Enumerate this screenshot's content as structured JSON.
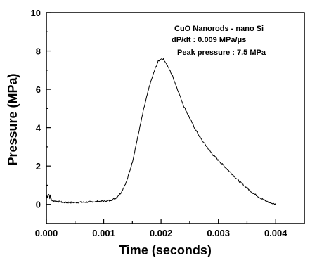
{
  "chart_data": {
    "type": "line",
    "title": "",
    "xlabel": "Time (seconds)",
    "ylabel": "Pressure (MPa)",
    "xlim": [
      0.0,
      0.0045
    ],
    "ylim": [
      -1,
      10
    ],
    "x_ticks": [
      "0.000",
      "0.001",
      "0.002",
      "0.003",
      "0.004"
    ],
    "y_ticks": [
      "0",
      "2",
      "4",
      "6",
      "8",
      "10"
    ],
    "grid": false,
    "legend": "none",
    "annotations": [
      "CuO Nanorods -  nano Si",
      "dP/dt : 0.009 MPa/μs",
      "Peak pressure : 7.5 MPa"
    ],
    "series": [
      {
        "x": [
          0.0,
          3e-05,
          0.0001,
          0.0003,
          0.0005,
          0.0007,
          0.0009,
          0.0011,
          0.0012,
          0.0013,
          0.0014,
          0.0015,
          0.0016,
          0.0017,
          0.0018,
          0.0019,
          0.00195,
          0.002,
          0.00205,
          0.0021,
          0.0022,
          0.0023,
          0.0024,
          0.0025,
          0.0026,
          0.0027,
          0.0028,
          0.0029,
          0.003,
          0.0031,
          0.0032,
          0.0033,
          0.0034,
          0.0035,
          0.0036,
          0.0037,
          0.0038,
          0.0039,
          0.004
        ],
        "y": [
          0.3,
          0.6,
          0.2,
          0.1,
          0.1,
          0.12,
          0.15,
          0.2,
          0.3,
          0.6,
          1.2,
          2.2,
          3.6,
          5.0,
          6.2,
          7.1,
          7.45,
          7.6,
          7.55,
          7.3,
          6.7,
          5.9,
          5.1,
          4.5,
          3.9,
          3.4,
          3.0,
          2.6,
          2.3,
          2.0,
          1.7,
          1.4,
          1.1,
          0.85,
          0.6,
          0.4,
          0.22,
          0.08,
          0.0
        ]
      }
    ]
  }
}
